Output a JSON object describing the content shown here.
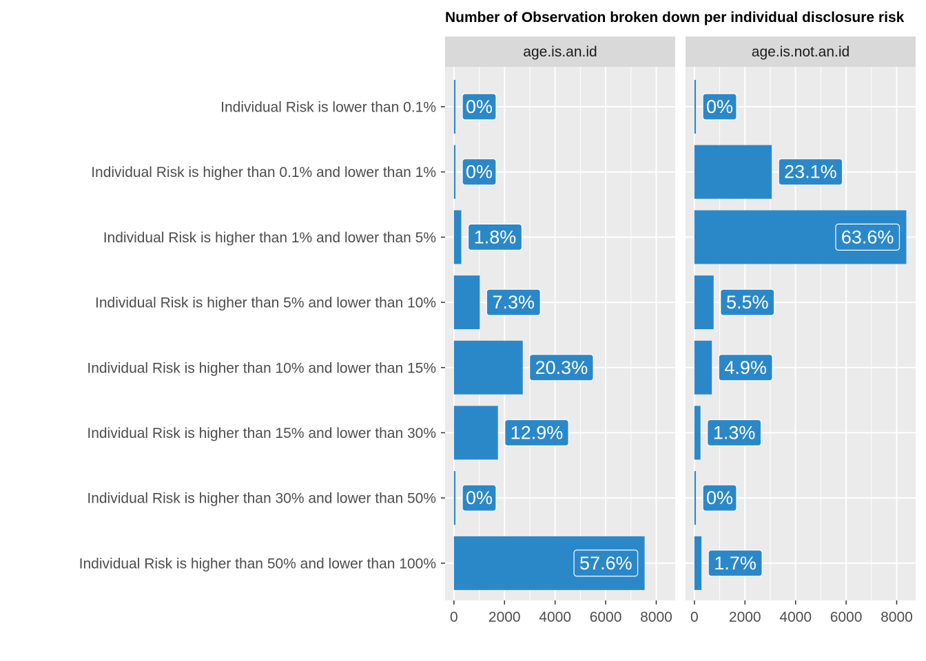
{
  "chart_data": {
    "type": "bar",
    "orientation": "horizontal",
    "title": "Number of Observation broken down per individual disclosure risk",
    "categories": [
      "Individual Risk is lower than 0.1%",
      "Individual Risk is higher than 0.1% and lower than 1%",
      "Individual Risk is higher than 1% and lower than 5%",
      "Individual Risk is higher than 5% and lower than 10%",
      "Individual Risk is higher than 10% and lower than 15%",
      "Individual Risk is higher than 15% and lower than 30%",
      "Individual Risk is higher than 30% and lower than 50%",
      "Individual Risk is higher than 50% and lower than 100%"
    ],
    "xlim": [
      -350,
      8750
    ],
    "xticks": [
      0,
      2000,
      4000,
      6000,
      8000
    ],
    "grid": true,
    "bar_color": "#2b88c8",
    "panel_bg": "#ebebeb",
    "strip_bg": "#d9d9d9",
    "panels": [
      {
        "name": "age.is.an.id",
        "values": [
          60,
          60,
          290,
          1020,
          2720,
          1740,
          60,
          7540
        ],
        "labels": [
          "0%",
          "0%",
          "1.8%",
          "7.3%",
          "20.3%",
          "12.9%",
          "0%",
          "57.6%"
        ]
      },
      {
        "name": "age.is.not.an.id",
        "values": [
          60,
          3060,
          8380,
          760,
          690,
          240,
          60,
          280
        ],
        "labels": [
          "0%",
          "23.1%",
          "63.6%",
          "5.5%",
          "4.9%",
          "1.3%",
          "0%",
          "1.7%"
        ]
      }
    ]
  }
}
